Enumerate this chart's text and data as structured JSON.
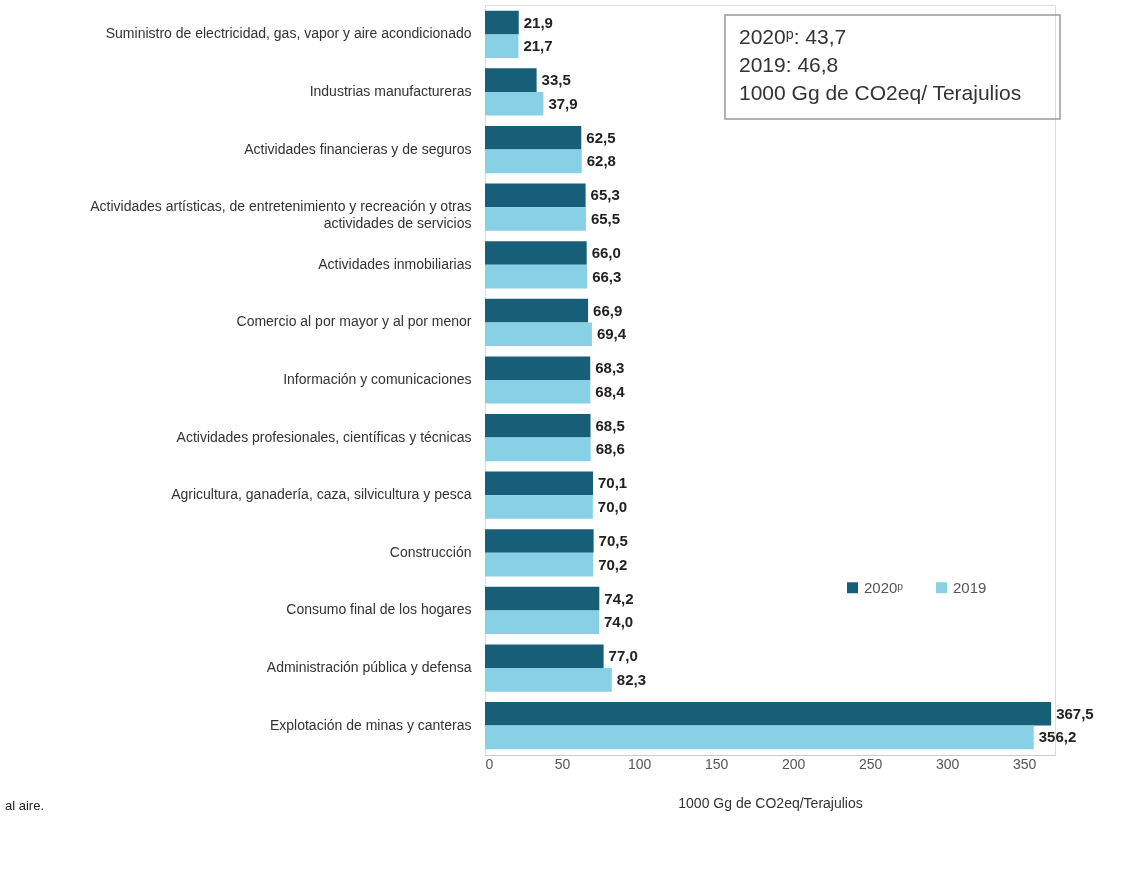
{
  "chart_data": {
    "type": "bar",
    "orientation": "horizontal",
    "categories": [
      "Suministro de electricidad, gas, vapor y aire acondicionado",
      "Industrias manufactureras",
      "Actividades financieras y de seguros",
      "Actividades artísticas, de entretenimiento y recreación y otras actividades de servicios",
      "Actividades inmobiliarias",
      "Comercio al por mayor y al por menor",
      "Información y comunicaciones",
      "Actividades profesionales, científicas y técnicas",
      "Agricultura, ganadería, caza, silvicultura y pesca",
      "Construcción",
      "Consumo final de los hogares",
      "Administración pública y defensa",
      "Explotación de minas y canteras"
    ],
    "series": [
      {
        "name": "2020ᵖ",
        "color": "#175e78",
        "values": [
          21.9,
          33.5,
          62.5,
          65.3,
          66.0,
          66.9,
          68.3,
          68.5,
          70.1,
          70.5,
          74.2,
          77.0,
          367.5
        ],
        "value_labels": [
          "21,9",
          "33,5",
          "62,5",
          "65,3",
          "66,0",
          "66,9",
          "68,3",
          "68,5",
          "70,1",
          "70,5",
          "74,2",
          "77,0",
          "367,5"
        ]
      },
      {
        "name": "2019",
        "color": "#87d0e6",
        "values": [
          21.7,
          37.9,
          62.8,
          65.5,
          66.3,
          69.4,
          68.4,
          68.6,
          70.0,
          70.2,
          74.0,
          82.3,
          356.2
        ],
        "value_labels": [
          "21,7",
          "37,9",
          "62,8",
          "65,5",
          "66,3",
          "69,4",
          "68,4",
          "68,6",
          "70,0",
          "70,2",
          "74,0",
          "82,3",
          "356,2"
        ]
      }
    ],
    "xlim": [
      0,
      370
    ],
    "xticks": [
      0,
      50,
      100,
      150,
      200,
      250,
      300,
      350
    ],
    "xlabel": "1000 Gg de CO2eq/Terajulios",
    "grid": false,
    "legend": "right",
    "annotations": [
      "2020ᵖ: 43,7",
      "2019:   46,8",
      "1000 Gg de CO2eq/ Terajulios",
      "al aire."
    ]
  }
}
